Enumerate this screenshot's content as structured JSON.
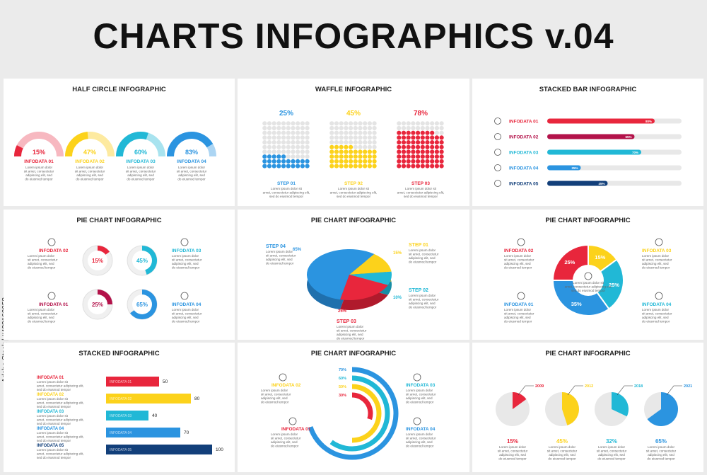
{
  "page": {
    "title": "CHARTS INFOGRAPHICS v.04",
    "watermark": "Adobe Stock | #428160058"
  },
  "colors": {
    "red": "#e8263c",
    "yellow": "#fcd21b",
    "cyan": "#21b8d6",
    "blue": "#2b94e0",
    "dark": "#123f7a",
    "crimson": "#b3124a",
    "grey": "#e6e6e6"
  },
  "lorem": "Lorem ipsum dolor sit amet, consectetur adipiscing elit, sed do eiusmod tempor",
  "chart_data": [
    {
      "type": "pie",
      "title": "HALF CIRCLE INFOGRAPHIC",
      "categories": [
        "INFODATA 01",
        "INFODATA 02",
        "INFODATA 03",
        "INFODATA 04"
      ],
      "values": [
        15,
        47,
        60,
        83
      ],
      "labels": [
        "15%",
        "47%",
        "60%",
        "83%"
      ]
    },
    {
      "type": "bar",
      "title": "WAFFLE INFOGRAPHIC",
      "categories": [
        "STEP 01",
        "STEP 02",
        "STEP 03"
      ],
      "values": [
        25,
        45,
        78
      ],
      "labels": [
        "25%",
        "45%",
        "78%"
      ]
    },
    {
      "type": "bar",
      "title": "STACKED BAR INFOGRAPHIC",
      "categories": [
        "INFODATA 01",
        "INFODATA 02",
        "INFODATA 03",
        "INFODATA 04",
        "INFODATA 05"
      ],
      "values": [
        80,
        65,
        70,
        25,
        45
      ],
      "labels": [
        "80%",
        "65%",
        "70%",
        "25%",
        "45%"
      ]
    },
    {
      "type": "pie",
      "title": "PIE CHART INFOGRAPHIC",
      "categories": [
        "INFODATA 02",
        "INFODATA 03",
        "INFODATA 01",
        "INFODATA 04"
      ],
      "values": [
        15,
        45,
        25,
        65
      ],
      "labels": [
        "15%",
        "45%",
        "25%",
        "65%"
      ]
    },
    {
      "type": "pie",
      "title": "PIE CHART INFOGRAPHIC",
      "categories": [
        "STEP 01",
        "STEP 02",
        "STEP 03",
        "STEP 04"
      ],
      "values": [
        15,
        10,
        25,
        65
      ],
      "labels": [
        "15%",
        "10%",
        "25%",
        "65%"
      ]
    },
    {
      "type": "pie",
      "title": "PIE CHART INFOGRAPHIC",
      "categories": [
        "INFODATA 03",
        "INFODATA 04",
        "INFODATA 01",
        "INFODATA 02"
      ],
      "values": [
        15,
        25,
        35,
        25
      ],
      "labels": [
        "15%",
        "25%",
        "35%",
        "25%"
      ]
    },
    {
      "type": "bar",
      "title": "STACKED INFOGRAPHIC",
      "categories": [
        "INFODATA 01",
        "INFODATA 02",
        "INFODATA 03",
        "INFODATA 04",
        "INFODATA 05"
      ],
      "values": [
        50,
        80,
        40,
        70,
        100
      ],
      "labels": [
        "50",
        "80",
        "40",
        "70",
        "100"
      ]
    },
    {
      "type": "bar",
      "title": "PIE CHART INFOGRAPHIC",
      "categories": [
        "INFODATA 01",
        "INFODATA 02",
        "INFODATA 03",
        "INFODATA 04"
      ],
      "values": [
        30,
        50,
        60,
        70
      ],
      "labels": [
        "30%",
        "50%",
        "60%",
        "70%"
      ]
    },
    {
      "type": "pie",
      "title": "PIE CHART INFOGRAPHIC",
      "categories": [
        "2009",
        "2012",
        "2018",
        "2021"
      ],
      "values": [
        15,
        45,
        32,
        65
      ],
      "labels": [
        "15%",
        "45%",
        "32%",
        "65%"
      ]
    }
  ]
}
